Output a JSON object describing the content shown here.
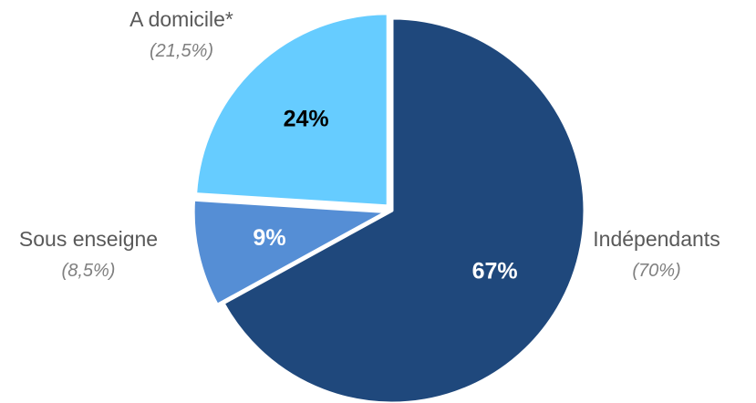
{
  "chart_data": {
    "type": "pie",
    "title": "",
    "slices": [
      {
        "label": "Indépendants",
        "value": 67,
        "value_label": "67%",
        "note": "(70%)",
        "color": "#1f487c",
        "text_color": "#ffffff",
        "exploded": false
      },
      {
        "label": "Sous enseigne",
        "value": 9,
        "value_label": "9%",
        "note": "(8,5%)",
        "color": "#558ed5",
        "text_color": "#ffffff",
        "exploded": true
      },
      {
        "label": "A domicile*",
        "value": 24,
        "value_label": "24%",
        "note": "(21,5%)",
        "color": "#66ccff",
        "text_color": "#000000",
        "exploded": true
      }
    ],
    "legend": "none",
    "start_angle_deg": 0,
    "direction": "clockwise"
  }
}
